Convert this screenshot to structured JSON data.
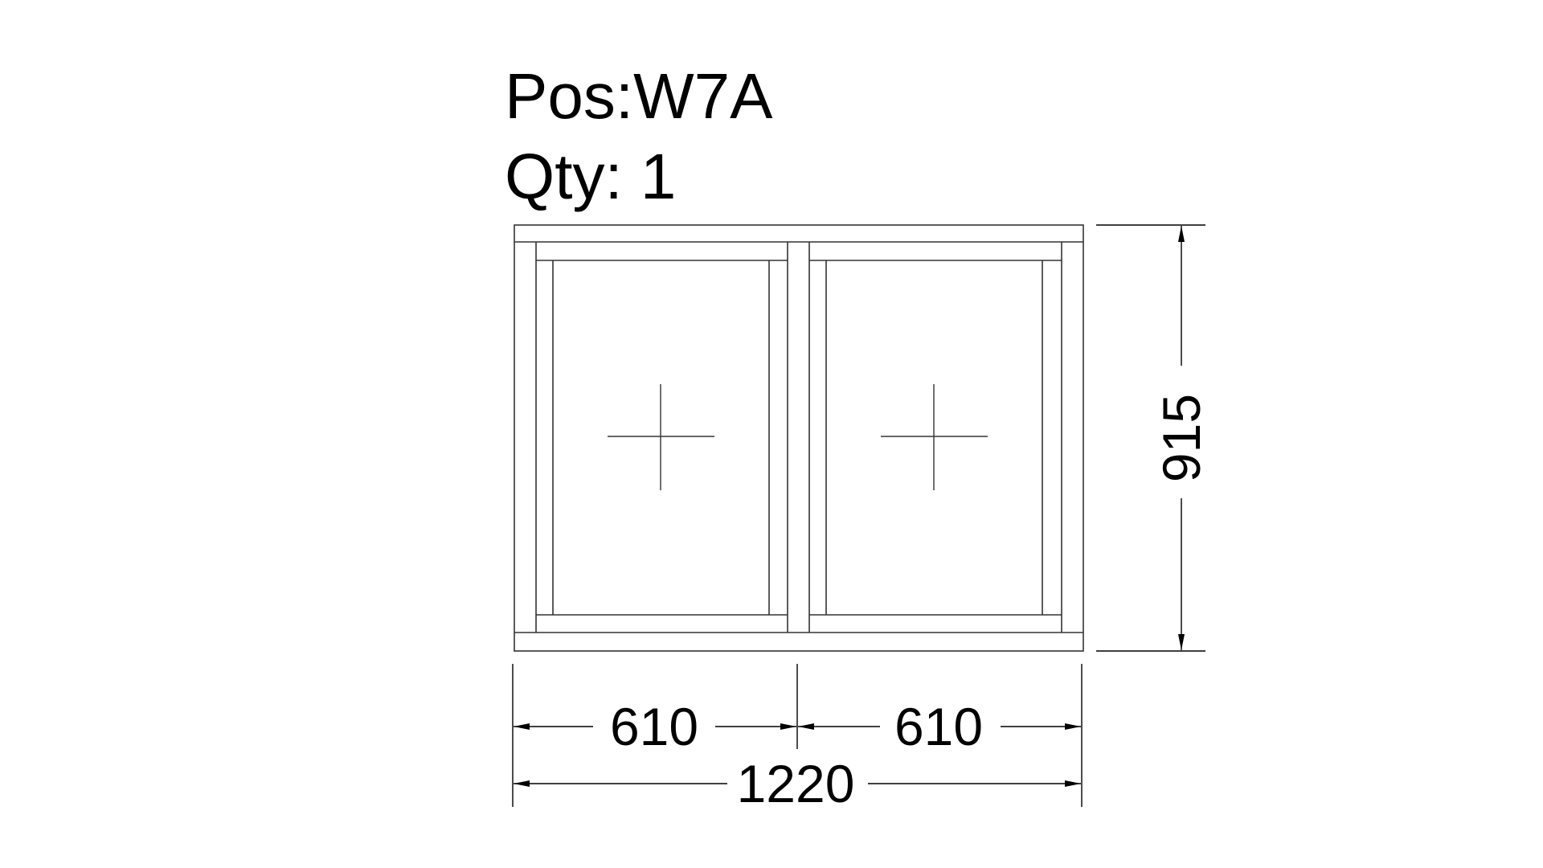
{
  "header": {
    "position_label": "Pos:W7A",
    "quantity_label": "Qty: 1"
  },
  "window": {
    "sashes": 2,
    "sash_symbol": "fixed-cross"
  },
  "dimensions": {
    "overall_width": "1220",
    "overall_height": "915",
    "sash_widths": [
      "610",
      "610"
    ]
  },
  "colors": {
    "line": "#000000",
    "frame_line": "#333333",
    "background": "#ffffff"
  }
}
